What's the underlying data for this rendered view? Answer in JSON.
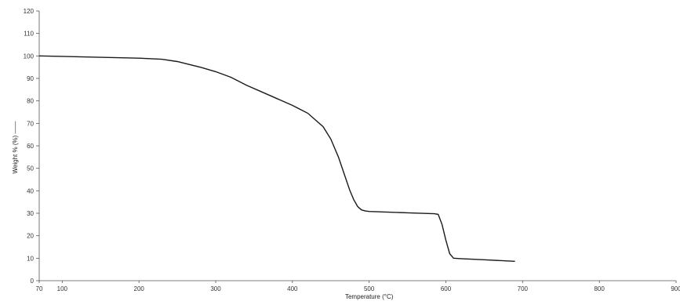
{
  "chart_data": {
    "type": "line",
    "title": "",
    "xlabel": "Temperature (°C)",
    "ylabel": "Weight % (%) ——",
    "xlim": [
      70,
      900
    ],
    "ylim": [
      0,
      120
    ],
    "x_ticks": [
      70,
      100,
      200,
      300,
      400,
      500,
      600,
      700,
      800,
      900
    ],
    "y_ticks": [
      0,
      10,
      20,
      30,
      40,
      50,
      60,
      70,
      80,
      90,
      100,
      110,
      120
    ],
    "grid": false,
    "legend": "none",
    "colors": {
      "line": "#1a1a1a",
      "axis": "#555555",
      "text": "#333333"
    },
    "series": [
      {
        "x": [
          70,
          100,
          150,
          200,
          230,
          250,
          280,
          300,
          320,
          340,
          360,
          380,
          400,
          420,
          440,
          450,
          460,
          470,
          475,
          480,
          485,
          490,
          495,
          500,
          550,
          585,
          590,
          595,
          600,
          605,
          610,
          620,
          650,
          690
        ],
        "y": [
          100,
          99.8,
          99.4,
          99.0,
          98.5,
          97.5,
          95.0,
          93.0,
          90.5,
          87.0,
          84.0,
          81.0,
          78.0,
          74.5,
          68.5,
          63.0,
          55.0,
          45.0,
          40.0,
          36.0,
          33.0,
          31.5,
          31.0,
          30.8,
          30.2,
          29.8,
          29.5,
          25.0,
          18.0,
          12.0,
          10.0,
          9.8,
          9.3,
          8.6
        ]
      }
    ]
  }
}
